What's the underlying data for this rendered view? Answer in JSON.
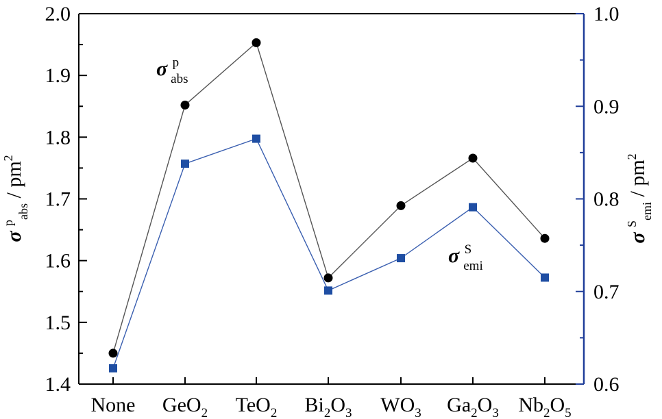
{
  "chart_data": {
    "type": "line",
    "categories": [
      "None",
      "GeO2",
      "TeO2",
      "Bi2O3",
      "WO3",
      "Ga2O3",
      "Nb2O5"
    ],
    "category_labels": [
      {
        "parts": [
          {
            "t": "None",
            "sub": false
          }
        ]
      },
      {
        "parts": [
          {
            "t": "GeO",
            "sub": false
          },
          {
            "t": "2",
            "sub": true
          }
        ]
      },
      {
        "parts": [
          {
            "t": "TeO",
            "sub": false
          },
          {
            "t": "2",
            "sub": true
          }
        ]
      },
      {
        "parts": [
          {
            "t": "Bi",
            "sub": false
          },
          {
            "t": "2",
            "sub": true
          },
          {
            "t": "O",
            "sub": false
          },
          {
            "t": "3",
            "sub": true
          }
        ]
      },
      {
        "parts": [
          {
            "t": "WO",
            "sub": false
          },
          {
            "t": "3",
            "sub": true
          }
        ]
      },
      {
        "parts": [
          {
            "t": "Ga",
            "sub": false
          },
          {
            "t": "2",
            "sub": true
          },
          {
            "t": "O",
            "sub": false
          },
          {
            "t": "3",
            "sub": true
          }
        ]
      },
      {
        "parts": [
          {
            "t": "Nb",
            "sub": false
          },
          {
            "t": "2",
            "sub": true
          },
          {
            "t": "O",
            "sub": false
          },
          {
            "t": "5",
            "sub": true
          }
        ]
      }
    ],
    "series": [
      {
        "name": "σ p abs",
        "axis": "left",
        "marker": "circle",
        "color": "#000000",
        "line_color": "#555555",
        "values": [
          1.45,
          1.852,
          1.953,
          1.572,
          1.689,
          1.766,
          1.636
        ]
      },
      {
        "name": "σ S emi",
        "axis": "right",
        "marker": "square",
        "color": "#1f4ea3",
        "line_color": "#3a5fb0",
        "values": [
          0.617,
          0.838,
          0.865,
          0.701,
          0.736,
          0.791,
          0.715
        ]
      }
    ],
    "y_left": {
      "label_symbol": "σ",
      "label_sup": "p",
      "label_sub": "abs",
      "label_unit": " / pm",
      "label_unit_sup": "2",
      "range": [
        1.4,
        2.0
      ],
      "ticks": [
        "1.4",
        "1.5",
        "1.6",
        "1.7",
        "1.8",
        "1.9",
        "2.0"
      ]
    },
    "y_right": {
      "label_symbol": "σ",
      "label_sup": "S",
      "label_sub": "emi",
      "label_unit": " / pm",
      "label_unit_sup": "2",
      "range": [
        0.6,
        1.0
      ],
      "ticks": [
        "0.6",
        "0.7",
        "0.8",
        "0.9",
        "1.0"
      ],
      "color": "#1f3d99"
    },
    "annotations": [
      {
        "series": 0,
        "symbol": "σ",
        "sup": "p",
        "sub": "abs"
      },
      {
        "series": 1,
        "symbol": "σ",
        "sup": "S",
        "sub": "emi"
      }
    ],
    "grid": false
  }
}
